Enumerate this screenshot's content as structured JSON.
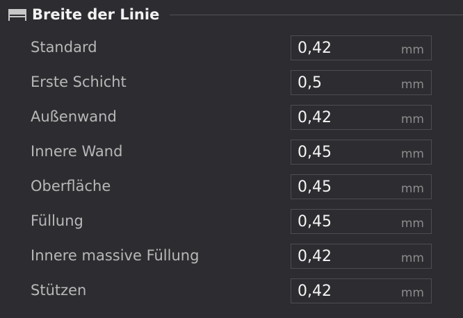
{
  "section": {
    "title": "Breite der Linie",
    "icon": "line-width-icon"
  },
  "rows": [
    {
      "label": "Standard",
      "value": "0,42",
      "unit": "mm"
    },
    {
      "label": "Erste Schicht",
      "value": "0,5",
      "unit": "mm"
    },
    {
      "label": "Außenwand",
      "value": "0,42",
      "unit": "mm"
    },
    {
      "label": "Innere Wand",
      "value": "0,45",
      "unit": "mm"
    },
    {
      "label": "Oberfläche",
      "value": "0,45",
      "unit": "mm"
    },
    {
      "label": "Füllung",
      "value": "0,45",
      "unit": "mm"
    },
    {
      "label": "Innere massive Füllung",
      "value": "0,42",
      "unit": "mm"
    },
    {
      "label": "Stützen",
      "value": "0,42",
      "unit": "mm"
    }
  ]
}
